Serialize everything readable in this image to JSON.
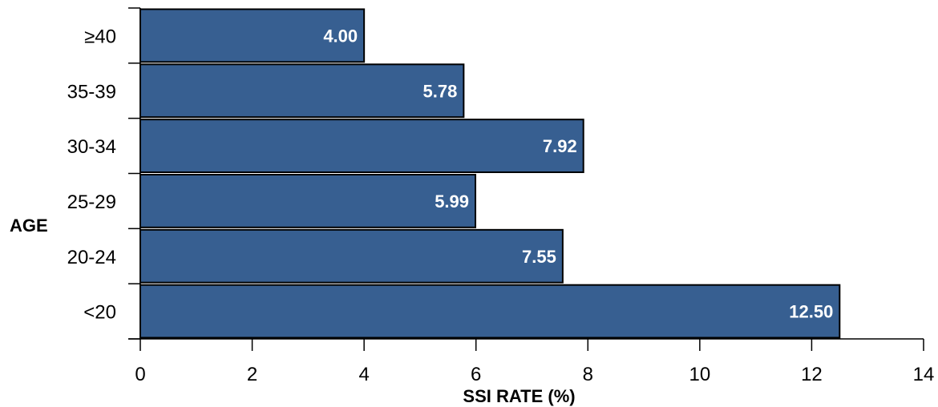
{
  "chart_data": {
    "type": "bar",
    "orientation": "horizontal",
    "categories": [
      "<20",
      "20-24",
      "25-29",
      "30-34",
      "35-39",
      "≥40"
    ],
    "values": [
      12.5,
      7.55,
      5.99,
      7.92,
      5.78,
      4.0
    ],
    "data_labels": [
      "12.50",
      "7.55",
      "5.99",
      "7.92",
      "5.78",
      "4.00"
    ],
    "xlabel": "SSI RATE (%)",
    "ylabel": "AGE",
    "xlim": [
      0,
      14
    ],
    "xticks": [
      0,
      2,
      4,
      6,
      8,
      10,
      12,
      14
    ],
    "grid": false,
    "legend": "none",
    "bar_color": "#375F91",
    "bar_edge_color": "#000000"
  }
}
